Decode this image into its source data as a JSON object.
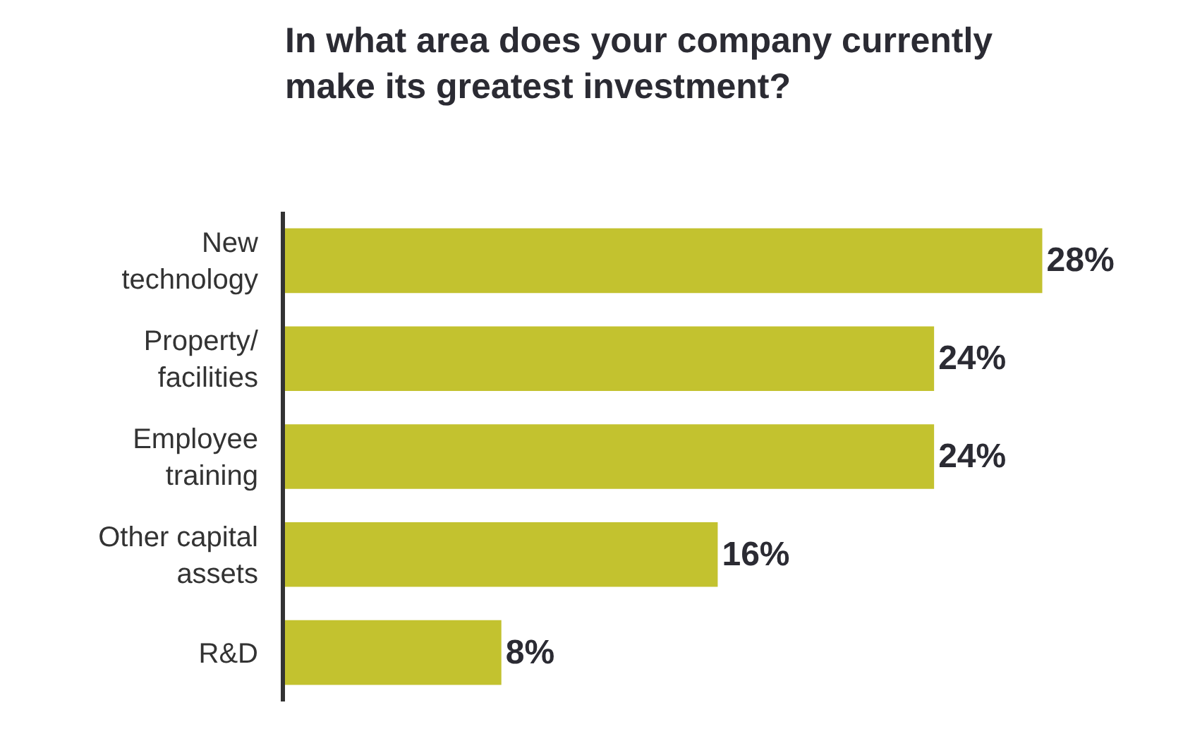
{
  "chart_data": {
    "type": "bar",
    "orientation": "horizontal",
    "title": "In what area does your company currently\nmake its greatest investment?",
    "categories": [
      "New\ntechnology",
      "Property/\nfacilities",
      "Employee\ntraining",
      "Other capital\nassets",
      "R&D"
    ],
    "values": [
      28,
      24,
      24,
      16,
      8
    ],
    "value_labels": [
      "28%",
      "24%",
      "24%",
      "16%",
      "8%"
    ],
    "color": "#c3c22f",
    "tick_labels": "y",
    "legend": false
  }
}
